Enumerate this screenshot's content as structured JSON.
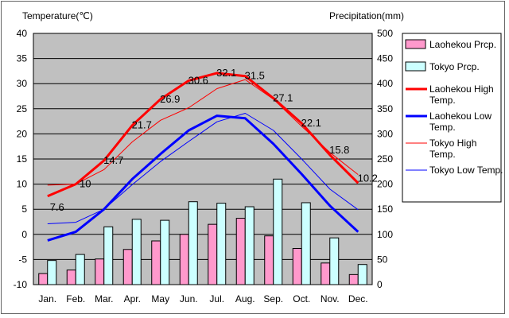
{
  "chart_data": {
    "type": "line",
    "categories": [
      "Jan.",
      "Feb.",
      "Mar.",
      "Apr.",
      "May",
      "Jun.",
      "Jul.",
      "Aug.",
      "Sep.",
      "Oct.",
      "Nov.",
      "Dec."
    ],
    "left_axis": {
      "label": "Temperature(℃)",
      "ylim": [
        -10,
        40
      ],
      "ticks": [
        40,
        35,
        30,
        25,
        20,
        15,
        10,
        5,
        0,
        -5,
        -10
      ]
    },
    "right_axis": {
      "label": "Precipitation(mm)",
      "ylim": [
        0,
        500
      ],
      "ticks": [
        500,
        450,
        400,
        350,
        300,
        250,
        200,
        150,
        100,
        50,
        0
      ]
    },
    "grid": true,
    "legend_position": "right",
    "series": [
      {
        "name": "Laohekou Prcp.",
        "kind": "bar",
        "axis": "right",
        "color": "#ff99cc",
        "values": [
          22,
          29,
          51,
          70,
          87,
          100,
          120,
          132,
          97,
          72,
          43,
          20
        ]
      },
      {
        "name": "Tokyo Prcp.",
        "kind": "bar",
        "axis": "right",
        "color": "#ccffff",
        "values": [
          48,
          60,
          115,
          130,
          128,
          165,
          162,
          155,
          210,
          163,
          93,
          40
        ]
      },
      {
        "name": "Laohekou High Temp.",
        "kind": "line",
        "axis": "left",
        "color": "#ff0000",
        "width": 3,
        "values": [
          7.6,
          10.0,
          14.7,
          21.7,
          26.9,
          30.6,
          32.1,
          31.5,
          27.1,
          22.1,
          15.8,
          10.2
        ]
      },
      {
        "name": "Laohekou Low Temp.",
        "kind": "line",
        "axis": "left",
        "color": "#0000ff",
        "width": 3,
        "values": [
          -1.2,
          0.5,
          5.0,
          11.0,
          16.0,
          20.7,
          23.6,
          23.1,
          18.0,
          12.0,
          5.7,
          0.5
        ]
      },
      {
        "name": "Tokyo High Temp.",
        "kind": "line",
        "axis": "left",
        "color": "#ff0000",
        "width": 1,
        "values": [
          9.8,
          10.0,
          12.9,
          18.4,
          22.7,
          25.2,
          29.0,
          30.8,
          26.9,
          21.5,
          16.3,
          11.9
        ]
      },
      {
        "name": "Tokyo Low Temp.",
        "kind": "line",
        "axis": "left",
        "color": "#0000ff",
        "width": 1,
        "values": [
          2.1,
          2.4,
          5.0,
          9.9,
          14.5,
          18.5,
          22.4,
          24.1,
          20.7,
          15.0,
          9.0,
          4.9
        ]
      }
    ],
    "data_labels": {
      "series": "Laohekou High Temp.",
      "text": [
        "7.6",
        "10",
        "14.7",
        "21.7",
        "26.9",
        "30.6",
        "32.1",
        "31.5",
        "27.1",
        "22.1",
        "15.8",
        "10.2"
      ]
    },
    "legend": [
      {
        "text": "Laohekou Prcp.",
        "series": "Laohekou Prcp."
      },
      {
        "text": "Tokyo Prcp.",
        "series": "Tokyo Prcp."
      },
      {
        "text": "Laohekou High Temp.",
        "series": "Laohekou High Temp."
      },
      {
        "text": "Laohekou Low Temp.",
        "series": "Laohekou Low Temp."
      },
      {
        "text": "Tokyo High Temp.",
        "series": "Tokyo High Temp."
      },
      {
        "text": "Tokyo Low Temp.",
        "series": "Tokyo Low Temp."
      }
    ]
  }
}
